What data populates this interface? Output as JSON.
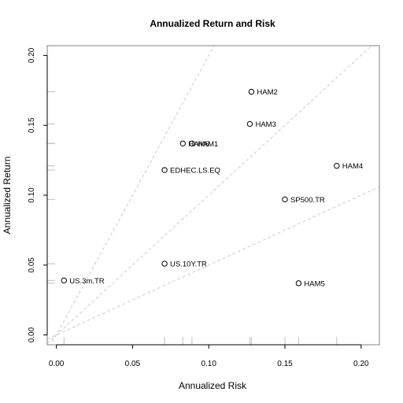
{
  "chart_data": {
    "type": "scatter",
    "title": "Annualized Return and Risk",
    "xlabel": "Annualized Risk",
    "ylabel": "Annualized Return",
    "xlim": [
      -0.006,
      0.212
    ],
    "ylim": [
      -0.007,
      0.207
    ],
    "x_ticks": [
      0.0,
      0.05,
      0.1,
      0.15,
      0.2
    ],
    "x_tick_labels": [
      "0.00",
      "0.05",
      "0.10",
      "0.15",
      "0.20"
    ],
    "y_ticks": [
      0.0,
      0.05,
      0.1,
      0.15,
      0.2
    ],
    "y_tick_labels": [
      "0.00",
      "0.05",
      "0.10",
      "0.15",
      "0.20"
    ],
    "grid": false,
    "reference_line_slopes": [
      0.5,
      1.0,
      2.0
    ],
    "points": [
      {
        "label": "HAM1",
        "x": 0.089,
        "y": 0.137
      },
      {
        "label": "HAM2",
        "x": 0.128,
        "y": 0.174
      },
      {
        "label": "HAM3",
        "x": 0.127,
        "y": 0.151
      },
      {
        "label": "HAM4",
        "x": 0.184,
        "y": 0.121
      },
      {
        "label": "HAM5",
        "x": 0.159,
        "y": 0.037
      },
      {
        "label": "HAM6",
        "x": 0.083,
        "y": 0.137
      },
      {
        "label": "EDHEC.LS.EQ",
        "x": 0.071,
        "y": 0.118
      },
      {
        "label": "SP500.TR",
        "x": 0.15,
        "y": 0.097
      },
      {
        "label": "US.10Y.TR",
        "x": 0.071,
        "y": 0.051
      },
      {
        "label": "US.3m.TR",
        "x": 0.005,
        "y": 0.039
      }
    ],
    "colors": {
      "points": "#000000",
      "reference_lines": "#cccccc",
      "box": "#808080",
      "rug": "#bfbfbf"
    }
  }
}
